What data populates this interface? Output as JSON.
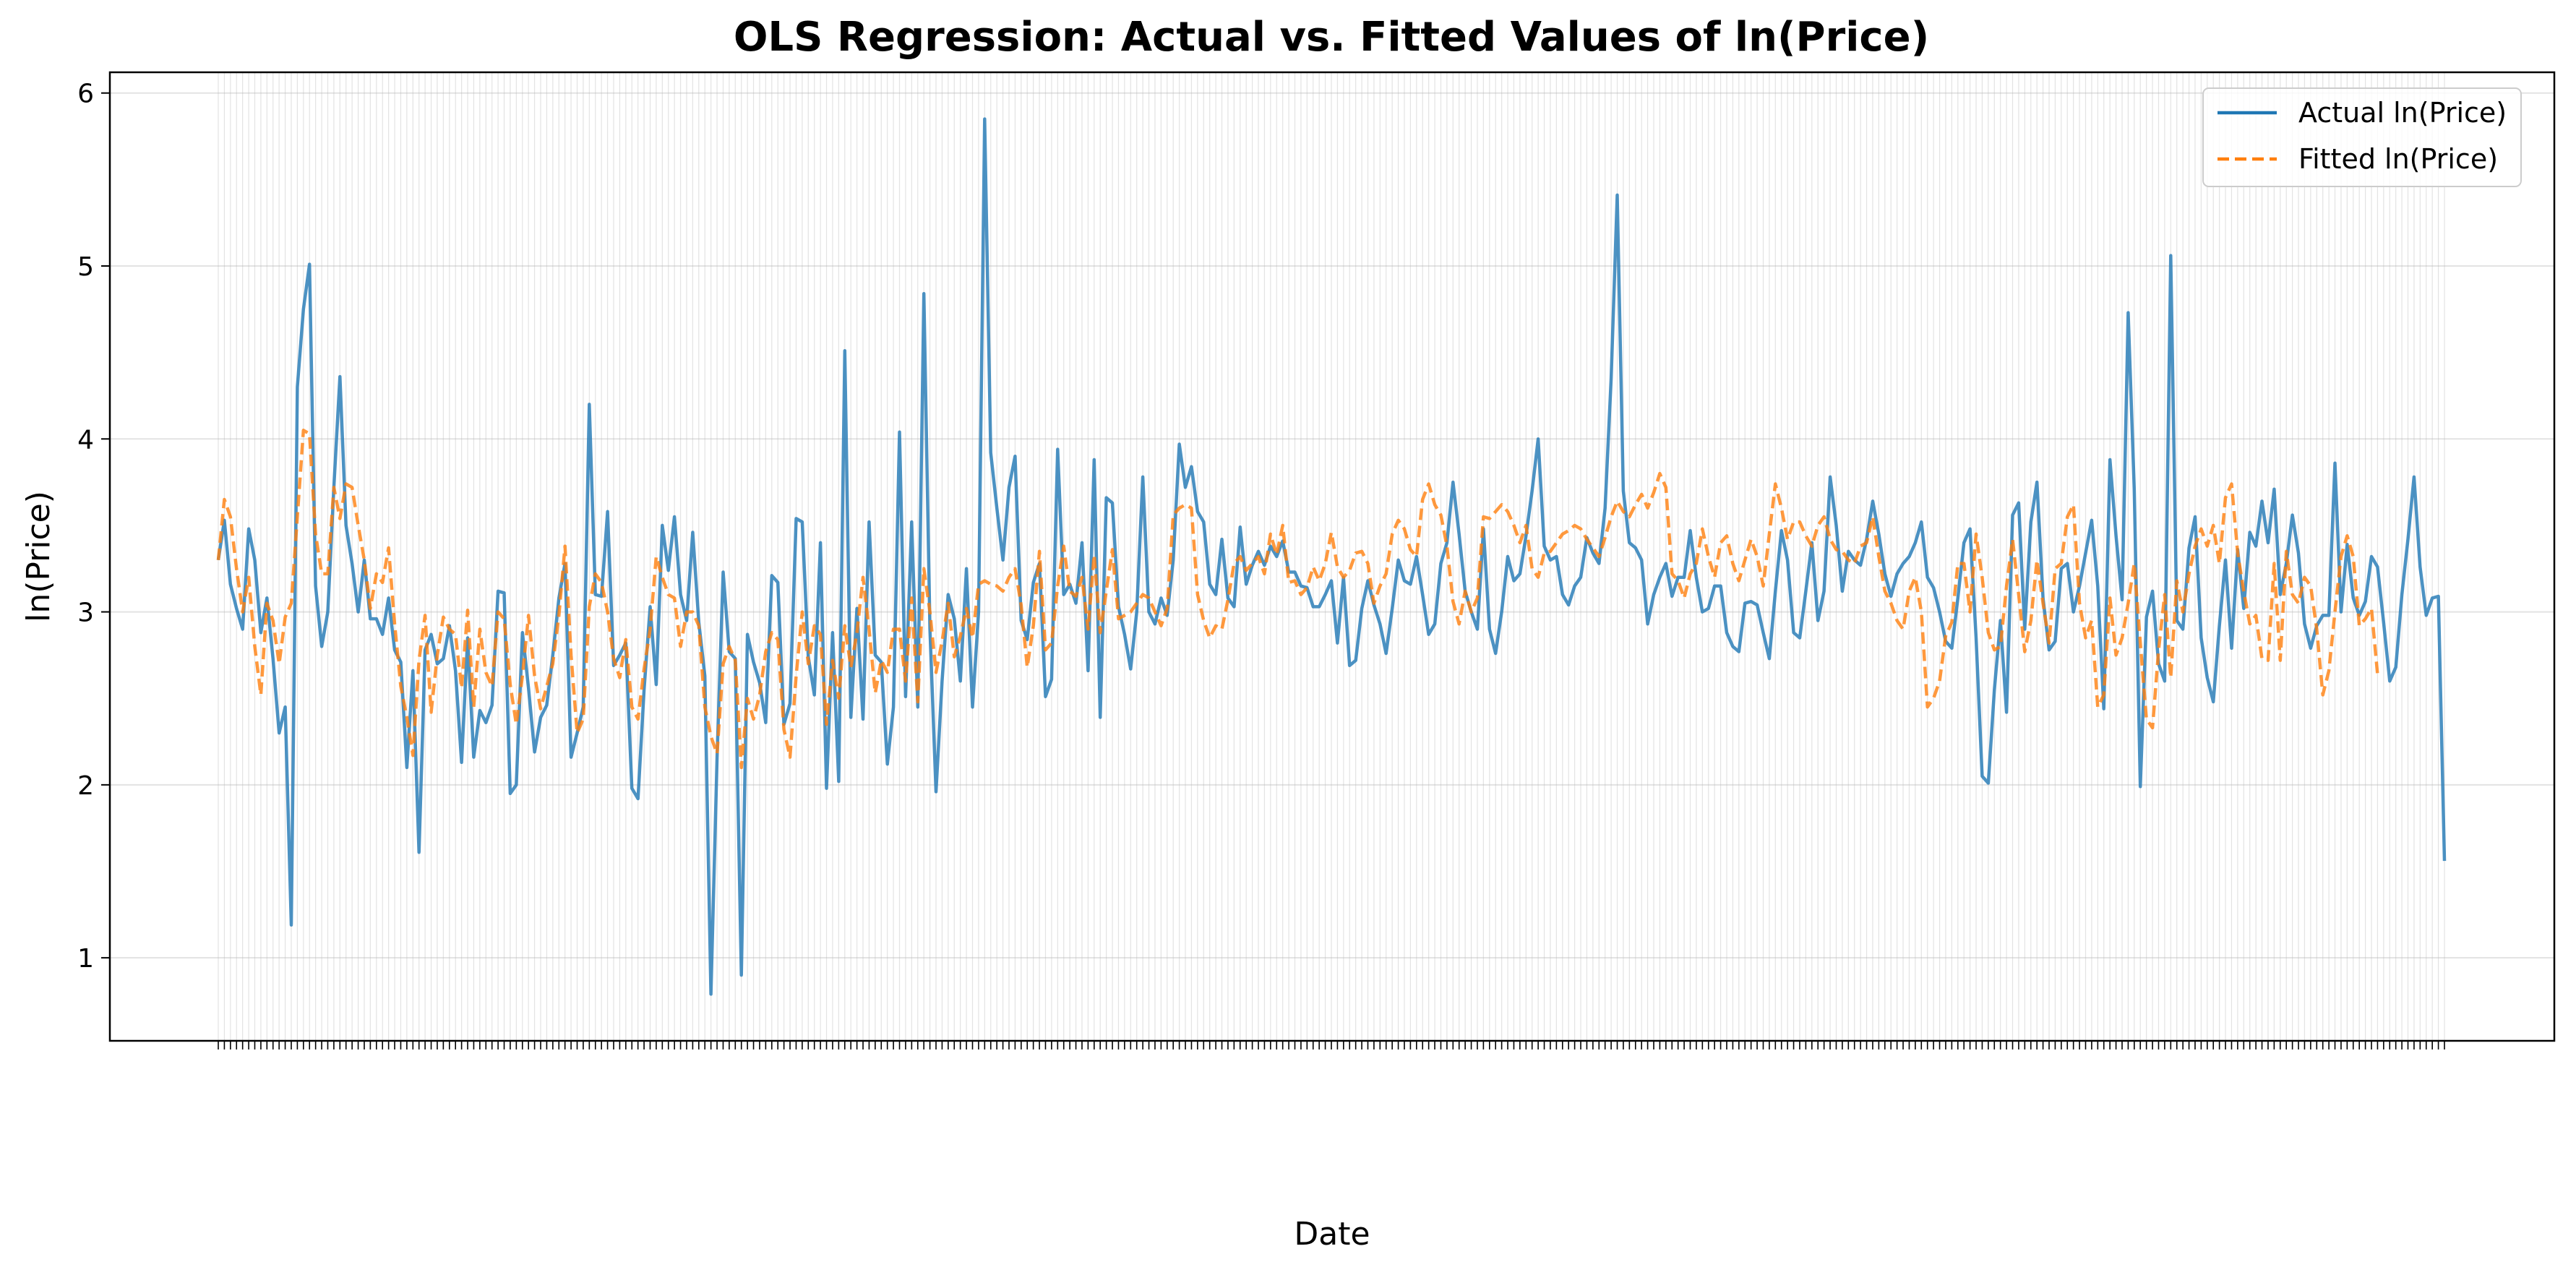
{
  "chart_data": {
    "type": "line",
    "title": "OLS Regression: Actual vs. Fitted Values of ln(Price)",
    "xlabel": "Date",
    "ylabel": "ln(Price)",
    "ylim": [
      0.52,
      6.12
    ],
    "yticks": [
      1,
      2,
      3,
      4,
      5,
      6
    ],
    "xticks_note": "",
    "grid": true,
    "legend_position": "top-right",
    "series": [
      {
        "name": "Actual ln(Price)",
        "color": "#1f77b4",
        "style": "solid",
        "values": [
          3.3,
          3.53,
          3.16,
          3.02,
          2.9,
          3.48,
          3.3,
          2.88,
          3.08,
          2.73,
          2.3,
          2.45,
          1.19,
          4.3,
          4.75,
          5.01,
          3.15,
          2.8,
          3.0,
          3.72,
          4.36,
          3.5,
          3.28,
          3.0,
          3.3,
          2.96,
          2.96,
          2.87,
          3.08,
          2.78,
          2.71,
          2.1,
          2.66,
          1.61,
          2.78,
          2.87,
          2.7,
          2.73,
          2.92,
          2.66,
          2.13,
          2.85,
          2.16,
          2.43,
          2.36,
          2.46,
          3.12,
          3.11,
          1.95,
          2.0,
          2.88,
          2.56,
          2.19,
          2.39,
          2.46,
          2.75,
          3.08,
          3.28,
          2.16,
          2.3,
          2.45,
          4.2,
          3.1,
          3.09,
          3.58,
          2.69,
          2.75,
          2.82,
          1.98,
          1.92,
          2.55,
          3.03,
          2.58,
          3.5,
          3.24,
          3.55,
          3.1,
          2.95,
          3.46,
          2.94,
          2.63,
          0.79,
          2.16,
          3.23,
          2.77,
          2.73,
          0.9,
          2.87,
          2.71,
          2.59,
          2.36,
          3.21,
          3.17,
          2.35,
          2.47,
          3.54,
          3.52,
          2.74,
          2.52,
          3.4,
          1.98,
          2.88,
          2.02,
          4.51,
          2.39,
          3.02,
          2.38,
          3.52,
          2.75,
          2.71,
          2.12,
          2.45,
          4.04,
          2.51,
          3.52,
          2.45,
          4.84,
          2.9,
          1.96,
          2.6,
          3.1,
          2.96,
          2.6,
          3.25,
          2.45,
          3.0,
          5.85,
          3.92,
          3.6,
          3.3,
          3.72,
          3.9,
          2.95,
          2.84,
          3.17,
          3.28,
          2.51,
          2.61,
          3.94,
          3.1,
          3.16,
          3.05,
          3.4,
          2.66,
          3.88,
          2.39,
          3.66,
          3.63,
          3.03,
          2.87,
          2.67,
          3.0,
          3.78,
          3.0,
          2.93,
          3.08,
          2.98,
          3.3,
          3.97,
          3.72,
          3.84,
          3.58,
          3.52,
          3.16,
          3.1,
          3.42,
          3.08,
          3.03,
          3.49,
          3.16,
          3.27,
          3.35,
          3.27,
          3.38,
          3.32,
          3.41,
          3.23,
          3.23,
          3.15,
          3.14,
          3.03,
          3.03,
          3.1,
          3.18,
          2.82,
          3.2,
          2.69,
          2.72,
          3.02,
          3.18,
          3.04,
          2.93,
          2.76,
          3.02,
          3.3,
          3.18,
          3.16,
          3.32,
          3.1,
          2.87,
          2.93,
          3.28,
          3.4,
          3.75,
          3.45,
          3.12,
          3.0,
          2.9,
          3.48,
          2.9,
          2.76,
          3.0,
          3.32,
          3.18,
          3.22,
          3.44,
          3.7,
          4.0,
          3.38,
          3.3,
          3.32,
          3.1,
          3.04,
          3.15,
          3.2,
          3.43,
          3.34,
          3.28,
          3.6,
          4.35,
          5.41,
          3.7,
          3.4,
          3.37,
          3.3,
          2.93,
          3.1,
          3.2,
          3.28,
          3.09,
          3.2,
          3.2,
          3.47,
          3.2,
          3.0,
          3.02,
          3.15,
          3.15,
          2.88,
          2.8,
          2.77,
          3.05,
          3.06,
          3.04,
          2.88,
          2.73,
          3.12,
          3.47,
          3.3,
          2.88,
          2.85,
          3.12,
          3.4,
          2.95,
          3.12,
          3.78,
          3.5,
          3.12,
          3.35,
          3.3,
          3.27,
          3.42,
          3.64,
          3.45,
          3.22,
          3.09,
          3.22,
          3.28,
          3.32,
          3.4,
          3.52,
          3.2,
          3.14,
          3.0,
          2.83,
          2.79,
          3.08,
          3.4,
          3.48,
          2.85,
          2.05,
          2.01,
          2.55,
          2.95,
          2.42,
          3.56,
          3.63,
          2.9,
          3.52,
          3.75,
          3.08,
          2.78,
          2.83,
          3.25,
          3.28,
          3.0,
          3.15,
          3.34,
          3.53,
          3.15,
          2.44,
          3.88,
          3.44,
          3.07,
          4.73,
          3.71,
          1.99,
          2.97,
          3.12,
          2.7,
          2.6,
          5.06,
          2.95,
          2.9,
          3.37,
          3.55,
          2.85,
          2.62,
          2.48,
          2.92,
          3.3,
          2.79,
          3.36,
          3.02,
          3.46,
          3.38,
          3.64,
          3.4,
          3.71,
          3.1,
          3.28,
          3.56,
          3.34,
          2.93,
          2.79,
          2.92,
          2.98,
          2.98,
          3.86,
          3.0,
          3.39,
          3.08,
          2.98,
          3.06,
          3.32,
          3.26,
          2.94,
          2.6,
          2.68,
          3.1,
          3.42,
          3.78,
          3.26,
          2.98,
          3.08,
          3.09,
          1.56
        ]
      },
      {
        "name": "Fitted ln(Price)",
        "color": "#ff7f0e",
        "style": "dashed",
        "values": [
          3.3,
          3.65,
          3.55,
          3.25,
          3.0,
          3.2,
          2.8,
          2.52,
          3.05,
          2.95,
          2.7,
          2.97,
          3.05,
          3.55,
          4.05,
          4.03,
          3.45,
          3.22,
          3.22,
          3.72,
          3.54,
          3.74,
          3.72,
          3.5,
          3.3,
          3.02,
          3.22,
          3.17,
          3.37,
          2.93,
          2.57,
          2.39,
          2.17,
          2.72,
          2.98,
          2.42,
          2.75,
          2.97,
          2.9,
          2.87,
          2.56,
          3.01,
          2.45,
          2.9,
          2.65,
          2.57,
          3.0,
          2.96,
          2.58,
          2.35,
          2.63,
          2.98,
          2.63,
          2.44,
          2.57,
          2.7,
          2.98,
          3.38,
          2.75,
          2.3,
          2.38,
          3.03,
          3.22,
          3.17,
          3.0,
          2.73,
          2.62,
          2.84,
          2.45,
          2.38,
          2.67,
          2.9,
          3.32,
          3.2,
          3.1,
          3.08,
          2.8,
          3.0,
          3.0,
          2.92,
          2.45,
          2.28,
          2.18,
          2.7,
          2.8,
          2.72,
          2.1,
          2.5,
          2.38,
          2.52,
          2.77,
          2.88,
          2.84,
          2.32,
          2.16,
          2.63,
          3.0,
          2.7,
          2.92,
          2.87,
          2.35,
          2.72,
          2.5,
          2.92,
          2.68,
          2.88,
          3.2,
          2.9,
          2.53,
          2.72,
          2.65,
          2.9,
          2.9,
          2.6,
          3.08,
          2.48,
          3.25,
          3.0,
          2.65,
          2.83,
          3.05,
          2.74,
          2.86,
          3.02,
          2.85,
          3.16,
          3.18,
          3.16,
          3.15,
          3.12,
          3.2,
          3.25,
          3.04,
          2.68,
          2.92,
          3.35,
          2.78,
          2.82,
          3.15,
          3.38,
          3.12,
          3.09,
          3.2,
          2.9,
          3.33,
          2.88,
          3.12,
          3.36,
          2.96,
          2.98,
          3.0,
          3.05,
          3.1,
          3.08,
          3.0,
          2.92,
          3.02,
          3.56,
          3.6,
          3.62,
          3.6,
          3.1,
          2.95,
          2.85,
          2.92,
          2.9,
          3.07,
          3.28,
          3.32,
          3.24,
          3.28,
          3.32,
          3.22,
          3.45,
          3.33,
          3.5,
          3.17,
          3.18,
          3.1,
          3.14,
          3.26,
          3.18,
          3.28,
          3.46,
          3.26,
          3.2,
          3.24,
          3.34,
          3.35,
          3.28,
          3.05,
          3.15,
          3.22,
          3.45,
          3.53,
          3.48,
          3.36,
          3.32,
          3.65,
          3.74,
          3.62,
          3.56,
          3.38,
          3.06,
          2.93,
          3.12,
          3.0,
          3.08,
          3.55,
          3.54,
          3.58,
          3.62,
          3.58,
          3.5,
          3.4,
          3.5,
          3.25,
          3.2,
          3.34,
          3.35,
          3.4,
          3.45,
          3.47,
          3.5,
          3.48,
          3.42,
          3.37,
          3.32,
          3.43,
          3.55,
          3.64,
          3.58,
          3.55,
          3.62,
          3.68,
          3.6,
          3.69,
          3.8,
          3.72,
          3.22,
          3.18,
          3.08,
          3.22,
          3.28,
          3.48,
          3.32,
          3.2,
          3.4,
          3.44,
          3.28,
          3.18,
          3.3,
          3.42,
          3.32,
          3.15,
          3.45,
          3.74,
          3.6,
          3.42,
          3.52,
          3.52,
          3.44,
          3.38,
          3.5,
          3.55,
          3.42,
          3.36,
          3.35,
          3.3,
          3.28,
          3.38,
          3.4,
          3.55,
          3.32,
          3.12,
          3.05,
          2.95,
          2.9,
          3.12,
          3.2,
          3.0,
          2.45,
          2.5,
          2.6,
          2.86,
          2.94,
          3.28,
          3.28,
          3.0,
          3.45,
          3.2,
          2.88,
          2.78,
          2.8,
          3.15,
          3.42,
          3.1,
          2.77,
          2.95,
          3.3,
          3.05,
          2.82,
          3.25,
          3.28,
          3.55,
          3.62,
          3.05,
          2.85,
          2.95,
          2.45,
          2.52,
          3.08,
          2.75,
          2.85,
          3.05,
          3.28,
          2.82,
          2.38,
          2.33,
          2.78,
          3.1,
          2.62,
          3.18,
          3.0,
          3.22,
          3.38,
          3.48,
          3.38,
          3.5,
          3.28,
          3.66,
          3.74,
          3.34,
          3.12,
          2.93,
          2.98,
          2.73,
          2.72,
          3.28,
          2.72,
          3.35,
          3.1,
          3.05,
          3.2,
          3.15,
          2.9,
          2.52,
          2.66,
          3.0,
          3.32,
          3.44,
          3.32,
          2.92,
          2.96,
          3.02,
          2.64
        ]
      }
    ]
  }
}
